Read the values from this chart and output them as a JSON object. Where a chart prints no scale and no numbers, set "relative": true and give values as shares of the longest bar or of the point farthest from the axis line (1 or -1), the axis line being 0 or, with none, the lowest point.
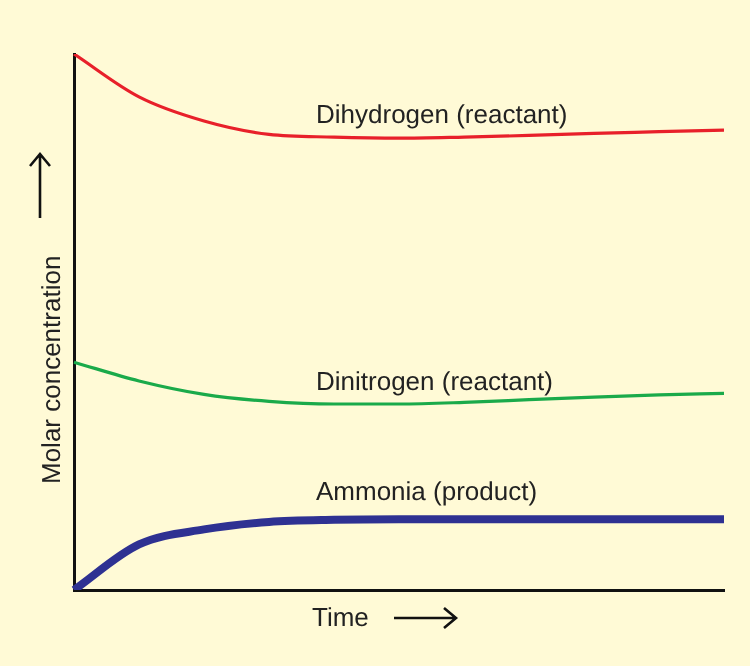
{
  "chart_data": {
    "type": "line",
    "relative": true,
    "xlabel": "Time",
    "ylabel": "Molar concentration",
    "legend": false,
    "marker": "none",
    "line_style": "solid",
    "grid": false,
    "categories": [
      null,
      null,
      null,
      null,
      null,
      null,
      null,
      null,
      null,
      null,
      null
    ],
    "series": [
      {
        "name": "Dihydrogen (reactant)",
        "color": "#e8202a",
        "values": [
          1,
          0.92,
          0.875,
          0.85,
          0.845,
          0.843,
          0.845,
          0.848,
          0.852,
          0.855,
          0.858
        ]
      },
      {
        "name": "Dinitrogen (reactant)",
        "color": "#1aaa4a",
        "values": [
          0.425,
          0.39,
          0.365,
          0.352,
          0.347,
          0.347,
          0.35,
          0.355,
          0.36,
          0.364,
          0.367
        ]
      },
      {
        "name": "Ammonia (product)",
        "color": "#2e3192",
        "values": [
          0,
          0.085,
          0.113,
          0.127,
          0.131,
          0.132,
          0.132,
          0.132,
          0.132,
          0.132,
          0.132
        ]
      }
    ]
  }
}
